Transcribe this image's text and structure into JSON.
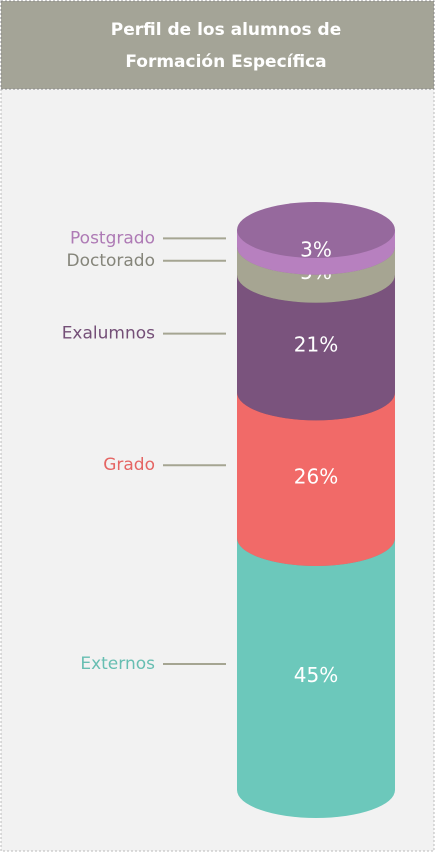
{
  "chart_data": {
    "type": "bar",
    "title": [
      "Perfil de los alumnos de",
      "Formación Específica"
    ],
    "categories": [
      "Postgrado",
      "Doctorado",
      "Exalumnos",
      "Grado",
      "Externos"
    ],
    "values": [
      3,
      5,
      21,
      26,
      45
    ],
    "value_labels": [
      "3%",
      "5%",
      "21%",
      "26%",
      "45%"
    ],
    "colors": [
      "#b780bf",
      "#a6a592",
      "#7a537d",
      "#f16a68",
      "#6cc8bb"
    ],
    "ylim": [
      0,
      100
    ]
  }
}
